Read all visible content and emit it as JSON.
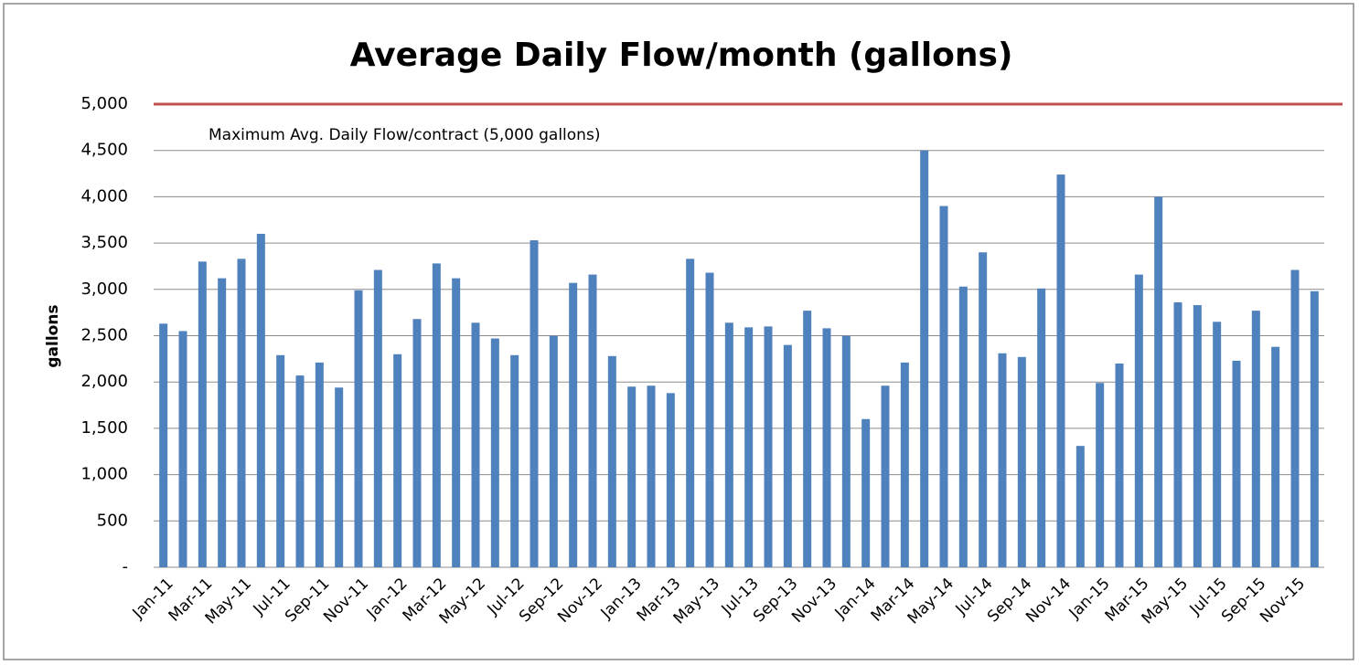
{
  "chart_data": {
    "type": "bar",
    "title": "Average Daily Flow/month (gallons)",
    "y_label": "gallons",
    "categories": [
      "Jan-11",
      null,
      "Mar-11",
      null,
      "May-11",
      null,
      "Jul-11",
      null,
      "Sep-11",
      null,
      "Nov-11",
      null,
      "Jan-12",
      null,
      "Mar-12",
      null,
      "May-12",
      null,
      "Jul-12",
      null,
      "Sep-12",
      null,
      "Nov-12",
      null,
      "Jan-13",
      null,
      "Mar-13",
      null,
      "May-13",
      null,
      "Jul-13",
      null,
      "Sep-13",
      null,
      "Nov-13",
      null,
      "Jan-14",
      null,
      "Mar-14",
      null,
      "May-14",
      null,
      "Jul-14",
      null,
      "Sep-14",
      null,
      "Nov-14",
      null,
      "Jan-15",
      null,
      "Mar-15",
      null,
      "May-15",
      null,
      "Jul-15",
      null,
      "Sep-15",
      null,
      "Nov-15",
      null
    ],
    "values": [
      2630,
      2550,
      3300,
      3120,
      3330,
      3600,
      2290,
      2070,
      2210,
      1940,
      2990,
      3210,
      2300,
      2680,
      3280,
      3120,
      2640,
      2470,
      2290,
      3530,
      2500,
      3070,
      3160,
      2280,
      1950,
      1960,
      1880,
      3330,
      3180,
      2640,
      2590,
      2600,
      2400,
      2770,
      2580,
      2500,
      1600,
      1960,
      2210,
      4500,
      3900,
      3030,
      3400,
      2310,
      2270,
      3010,
      4240,
      1310,
      1990,
      2200,
      3160,
      4000,
      2860,
      2830,
      2650,
      2230,
      2770,
      2380,
      3210,
      2980
    ],
    "color": "#4f81bd",
    "ylim": [
      0,
      5000
    ],
    "yticks": [
      {
        "value": 0,
        "label": "-"
      },
      {
        "value": 500,
        "label": "500"
      },
      {
        "value": 1000,
        "label": "1,000"
      },
      {
        "value": 1500,
        "label": "1,500"
      },
      {
        "value": 2000,
        "label": "2,000"
      },
      {
        "value": 2500,
        "label": "2,500"
      },
      {
        "value": 3000,
        "label": "3,000"
      },
      {
        "value": 3500,
        "label": "3,500"
      },
      {
        "value": 4000,
        "label": "4,000"
      },
      {
        "value": 4500,
        "label": "4,500"
      },
      {
        "value": 5000,
        "label": "5,000"
      }
    ],
    "grid": true,
    "reference_line": {
      "value": 5000,
      "color": "#c0504d",
      "label": "Maximum Avg. Daily Flow/contract (5,000 gallons)"
    }
  }
}
